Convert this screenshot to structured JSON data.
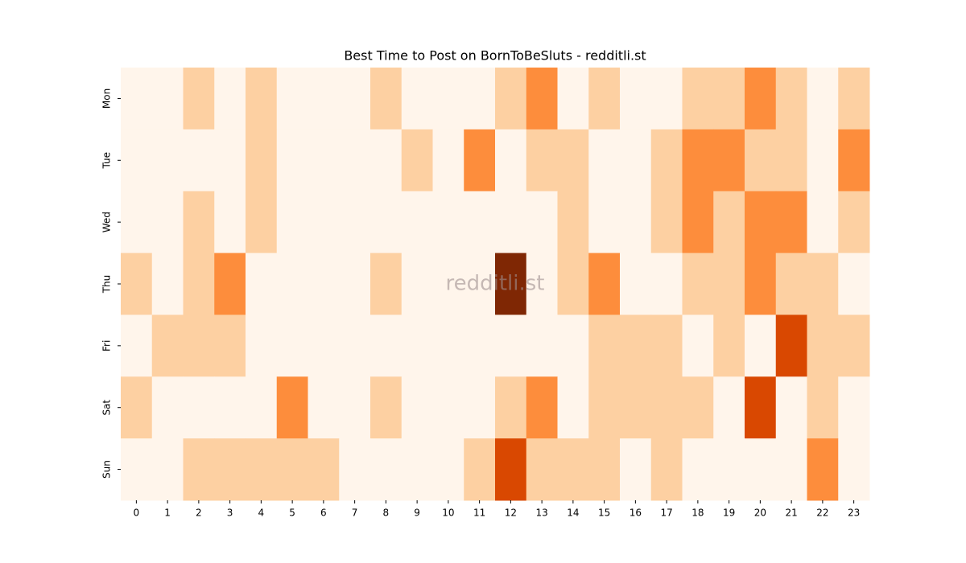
{
  "chart_data": {
    "type": "heatmap",
    "title": "Best Time to Post on BornToBeSluts - redditli.st",
    "watermark": "redditli.st",
    "x_categories": [
      "0",
      "1",
      "2",
      "3",
      "4",
      "5",
      "6",
      "7",
      "8",
      "9",
      "10",
      "11",
      "12",
      "13",
      "14",
      "15",
      "16",
      "17",
      "18",
      "19",
      "20",
      "21",
      "22",
      "23"
    ],
    "y_categories": [
      "Mon",
      "Tue",
      "Wed",
      "Thu",
      "Fri",
      "Sat",
      "Sun"
    ],
    "values": [
      [
        0,
        0,
        1,
        0,
        1,
        0,
        0,
        0,
        1,
        0,
        0,
        0,
        1,
        2,
        0,
        1,
        0,
        0,
        1,
        1,
        2,
        1,
        0,
        1
      ],
      [
        0,
        0,
        0,
        0,
        1,
        0,
        0,
        0,
        0,
        1,
        0,
        2,
        0,
        1,
        1,
        0,
        0,
        1,
        2,
        2,
        1,
        1,
        0,
        2
      ],
      [
        0,
        0,
        1,
        0,
        1,
        0,
        0,
        0,
        0,
        0,
        0,
        0,
        0,
        0,
        1,
        0,
        0,
        1,
        2,
        1,
        2,
        2,
        0,
        1
      ],
      [
        1,
        0,
        1,
        2,
        0,
        0,
        0,
        0,
        1,
        0,
        0,
        0,
        4,
        0,
        1,
        2,
        0,
        0,
        1,
        1,
        2,
        1,
        1,
        0
      ],
      [
        0,
        1,
        1,
        1,
        0,
        0,
        0,
        0,
        0,
        0,
        0,
        0,
        0,
        0,
        0,
        1,
        1,
        1,
        0,
        1,
        0,
        3,
        1,
        1
      ],
      [
        1,
        0,
        0,
        0,
        0,
        2,
        0,
        0,
        1,
        0,
        0,
        0,
        1,
        2,
        0,
        1,
        1,
        1,
        1,
        0,
        3,
        0,
        1,
        0
      ],
      [
        0,
        0,
        1,
        1,
        1,
        1,
        1,
        0,
        0,
        0,
        0,
        1,
        3,
        1,
        1,
        1,
        0,
        1,
        0,
        0,
        0,
        0,
        2,
        0
      ]
    ],
    "colors": [
      "#fff5eb",
      "#fdd0a2",
      "#fd8d3c",
      "#d94801",
      "#7f2704"
    ]
  }
}
